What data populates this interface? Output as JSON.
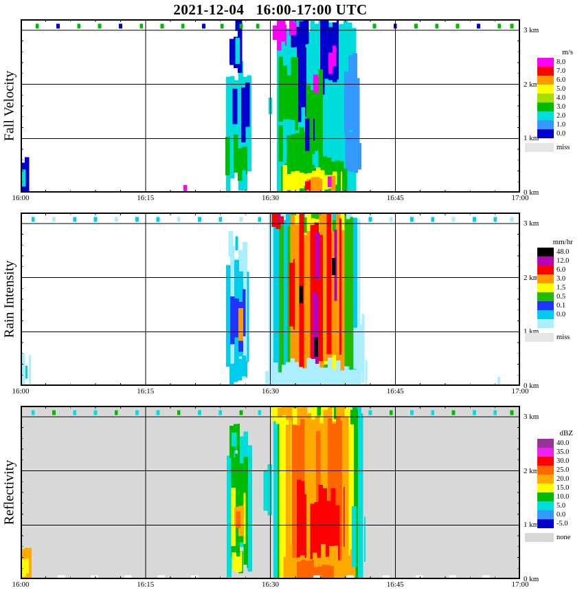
{
  "title": "2021-12-04   16:00-17:00 UTC",
  "x_axis": {
    "labels": [
      "16:00",
      "16:15",
      "16:30",
      "16:45",
      "17:00"
    ],
    "minutes": [
      0,
      15,
      30,
      45,
      60
    ]
  },
  "y_axis": {
    "labels": [
      "3 km",
      "2 km",
      "1 km",
      "0 km"
    ],
    "km": [
      3,
      2,
      1,
      0
    ],
    "range_km": [
      0,
      3.2
    ]
  },
  "chart_data": [
    {
      "type": "heatmap",
      "title": "Fall Velocity",
      "units": "m/s",
      "background": "#ffffff",
      "x_range_minutes": [
        0,
        60
      ],
      "y_range_km": [
        0,
        3.2
      ],
      "grid": {
        "x_minutes": [
          15,
          30,
          45
        ],
        "y_km": [
          1,
          2,
          3
        ]
      },
      "colorbar": {
        "title": "m/s",
        "cells": [
          {
            "label": "8.0",
            "color": "#ff00ff"
          },
          {
            "label": "7.0",
            "color": "#ff0000"
          },
          {
            "label": "6.0",
            "color": "#ff9900"
          },
          {
            "label": "5.0",
            "color": "#ffff00"
          },
          {
            "label": "4.0",
            "color": "#aadd00"
          },
          {
            "label": "3.0",
            "color": "#00bb00"
          },
          {
            "label": "2.0",
            "color": "#00dddd"
          },
          {
            "label": "1.0",
            "color": "#3399ff"
          },
          {
            "label": "0.0",
            "color": "#0000cc"
          }
        ],
        "missing": {
          "label": "miss",
          "color": "#e5e5e5"
        }
      },
      "blobs": [
        [
          0,
          1.3,
          0,
          0.6,
          8,
          0.12
        ],
        [
          0.1,
          0.9,
          0.08,
          0.38,
          6,
          0.08
        ],
        [
          19.6,
          20.0,
          0.0,
          0.14,
          0,
          0
        ],
        [
          29.3,
          30.2,
          1.3,
          1.9,
          6,
          0.15
        ],
        [
          24.2,
          27.8,
          0.25,
          2.15,
          6,
          0.28
        ],
        [
          24.6,
          27.2,
          0.35,
          0.95,
          5,
          0.15
        ],
        [
          25.5,
          27.5,
          1.05,
          1.95,
          8,
          0.22
        ],
        [
          25.1,
          26.6,
          2.3,
          2.95,
          8,
          0.15
        ],
        [
          25.3,
          26.3,
          2.45,
          2.8,
          6,
          0.1
        ],
        [
          25.8,
          26.6,
          3.0,
          3.16,
          8,
          0.04
        ],
        [
          30.3,
          40.7,
          0.0,
          3.2,
          6,
          0.3
        ],
        [
          30.3,
          31.9,
          2.7,
          3.2,
          0,
          0.12
        ],
        [
          32.0,
          34.6,
          2.7,
          3.2,
          8,
          0.15
        ],
        [
          36.0,
          38.2,
          1.9,
          3.05,
          8,
          0.22
        ],
        [
          33.2,
          34.3,
          1.5,
          2.85,
          8,
          0.22
        ],
        [
          31.0,
          33.3,
          1.2,
          2.3,
          5,
          0.25
        ],
        [
          33.8,
          36.3,
          0.7,
          2.05,
          5,
          0.25
        ],
        [
          31.0,
          35.0,
          0.4,
          1.2,
          5,
          0.2
        ],
        [
          34.2,
          35.3,
          0.85,
          1.45,
          8,
          0.15
        ],
        [
          38.4,
          40.7,
          0.9,
          2.35,
          7,
          0.25
        ],
        [
          39.0,
          40.9,
          0.25,
          1.05,
          7,
          0.2
        ],
        [
          36.5,
          37.6,
          1.3,
          1.75,
          0,
          0.08
        ],
        [
          37.0,
          37.9,
          2.25,
          2.65,
          0,
          0.08
        ],
        [
          35.2,
          35.8,
          1.85,
          2.15,
          0,
          0.05
        ],
        [
          32.3,
          33.1,
          2.9,
          3.18,
          0,
          0.05
        ],
        [
          30.8,
          39.2,
          0.0,
          0.55,
          5,
          0.12
        ],
        [
          31.5,
          38.6,
          0.05,
          0.42,
          3,
          0.1
        ],
        [
          33.4,
          36.2,
          0.0,
          0.3,
          2,
          0.08
        ],
        [
          36.8,
          38.0,
          0.0,
          0.26,
          2,
          0.06
        ],
        [
          34.2,
          34.8,
          0.03,
          0.24,
          1,
          0.05
        ],
        [
          36.9,
          37.3,
          0.1,
          0.3,
          0,
          0
        ]
      ],
      "top_marks": [
        [
          2,
          5
        ],
        [
          4.5,
          8
        ],
        [
          7,
          5
        ],
        [
          9.5,
          5
        ],
        [
          12,
          8
        ],
        [
          14.5,
          5
        ],
        [
          17,
          5
        ],
        [
          19.5,
          5
        ],
        [
          22,
          8
        ],
        [
          24.2,
          5
        ],
        [
          26.5,
          5
        ],
        [
          28.5,
          5
        ],
        [
          42.5,
          5
        ],
        [
          45,
          8
        ],
        [
          47.5,
          5
        ],
        [
          50,
          5
        ],
        [
          52.5,
          5
        ],
        [
          55,
          8
        ],
        [
          57.5,
          5
        ],
        [
          59,
          5
        ]
      ]
    },
    {
      "type": "heatmap",
      "title": "Rain Intensity",
      "units": "mm/hr",
      "background": "#ffffff",
      "x_range_minutes": [
        0,
        60
      ],
      "y_range_km": [
        0,
        3.2
      ],
      "grid": {
        "x_minutes": [
          15,
          30,
          45
        ],
        "y_km": [
          1,
          2,
          3
        ]
      },
      "colorbar": {
        "title": "mm/hr",
        "cells": [
          {
            "label": "48.0",
            "color": "#000000"
          },
          {
            "label": "12.0",
            "color": "#bb00bb"
          },
          {
            "label": "6.0",
            "color": "#ff0000"
          },
          {
            "label": "3.0",
            "color": "#ff9900"
          },
          {
            "label": "1.5",
            "color": "#ffff00"
          },
          {
            "label": "0.5",
            "color": "#22bb00"
          },
          {
            "label": "0.1",
            "color": "#2233ff"
          },
          {
            "label": "0.0",
            "color": "#00ccee"
          },
          {
            "label": "",
            "color": "#aaeeff"
          }
        ],
        "missing": {
          "label": "miss",
          "color": "#e5e5e5"
        }
      },
      "blobs": [
        [
          0,
          1.2,
          0,
          0.55,
          8,
          0.1
        ],
        [
          0.1,
          0.8,
          0.06,
          0.34,
          7,
          0.08
        ],
        [
          56.8,
          57.6,
          0.04,
          0.2,
          8,
          0.04
        ],
        [
          29.2,
          30.2,
          1.3,
          2.0,
          8,
          0.15
        ],
        [
          24.2,
          27.9,
          0.3,
          2.6,
          8,
          0.3
        ],
        [
          24.7,
          27.4,
          0.45,
          2.2,
          7,
          0.25
        ],
        [
          25.2,
          27.0,
          0.8,
          1.65,
          6,
          0.2
        ],
        [
          25.7,
          26.9,
          0.92,
          1.38,
          3,
          0.12
        ],
        [
          26.0,
          26.6,
          1.0,
          1.25,
          2,
          0.06
        ],
        [
          25.0,
          26.4,
          2.3,
          2.85,
          8,
          0.15
        ],
        [
          25.3,
          26.1,
          2.42,
          2.72,
          7,
          0.1
        ],
        [
          24.6,
          27.2,
          0.12,
          0.5,
          7,
          0.1
        ],
        [
          29.8,
          41.2,
          0.0,
          3.2,
          8,
          0.3
        ],
        [
          30.4,
          40.4,
          0.0,
          3.2,
          7,
          0.3
        ],
        [
          31.1,
          39.9,
          0.1,
          3.15,
          5,
          0.3
        ],
        [
          31.9,
          39.4,
          0.2,
          3.1,
          4,
          0.3
        ],
        [
          32.4,
          39.0,
          0.3,
          3.05,
          3,
          0.3
        ],
        [
          33.0,
          34.3,
          0.35,
          3.1,
          2,
          0.25
        ],
        [
          34.8,
          36.3,
          0.25,
          3.0,
          2,
          0.25
        ],
        [
          36.8,
          38.5,
          0.45,
          3.05,
          2,
          0.25
        ],
        [
          32.3,
          32.9,
          1.0,
          2.2,
          2,
          0.15
        ],
        [
          33.3,
          34.0,
          1.1,
          2.5,
          1,
          0.18
        ],
        [
          35.1,
          35.8,
          0.3,
          1.6,
          1,
          0.18
        ],
        [
          35.4,
          36.0,
          2.0,
          2.9,
          1,
          0.15
        ],
        [
          37.2,
          38.0,
          1.5,
          2.9,
          1,
          0.15
        ],
        [
          36.4,
          36.9,
          0.8,
          1.5,
          1,
          0.12
        ],
        [
          33.5,
          33.9,
          1.5,
          1.85,
          0,
          0.05
        ],
        [
          35.3,
          35.7,
          0.55,
          0.9,
          0,
          0.05
        ],
        [
          37.4,
          37.8,
          2.05,
          2.4,
          0,
          0.05
        ],
        [
          30.2,
          31.6,
          2.95,
          3.2,
          2,
          0.07
        ],
        [
          30.5,
          31.2,
          3.02,
          3.2,
          1,
          0.04
        ],
        [
          39.5,
          41.3,
          0.25,
          1.25,
          8,
          0.2
        ],
        [
          29.4,
          41.6,
          0.0,
          0.38,
          8,
          0.14
        ]
      ],
      "top_marks": [
        [
          1.5,
          7
        ],
        [
          4,
          8
        ],
        [
          6.5,
          7
        ],
        [
          9,
          7
        ],
        [
          11.5,
          8
        ],
        [
          14,
          7
        ],
        [
          16.5,
          7
        ],
        [
          19,
          8
        ],
        [
          21.5,
          7
        ],
        [
          24,
          7
        ],
        [
          26.5,
          8
        ],
        [
          28.7,
          7
        ],
        [
          42,
          7
        ],
        [
          44.5,
          8
        ],
        [
          47,
          7
        ],
        [
          49.5,
          7
        ],
        [
          52,
          8
        ],
        [
          54.5,
          7
        ],
        [
          57,
          7
        ],
        [
          59,
          8
        ]
      ]
    },
    {
      "type": "heatmap",
      "title": "Reflectivity",
      "units": "dBZ",
      "background": "#d8d8d8",
      "x_range_minutes": [
        0,
        60
      ],
      "y_range_km": [
        0,
        3.2
      ],
      "grid": {
        "x_minutes": [
          15,
          30,
          45
        ],
        "y_km": [
          1,
          2,
          3
        ]
      },
      "colorbar": {
        "title": "dBZ",
        "cells": [
          {
            "label": "40.0",
            "color": "#993399"
          },
          {
            "label": "35.0",
            "color": "#ee22ee"
          },
          {
            "label": "30.0",
            "color": "#ff0000"
          },
          {
            "label": "25.0",
            "color": "#ff6600"
          },
          {
            "label": "20.0",
            "color": "#ffaa00"
          },
          {
            "label": "15.0",
            "color": "#ffff00"
          },
          {
            "label": "10.0",
            "color": "#00bb00"
          },
          {
            "label": "5.0",
            "color": "#00dddd"
          },
          {
            "label": "0.0",
            "color": "#3399ff"
          },
          {
            "label": "-5.0",
            "color": "#0000cc"
          }
        ],
        "missing": {
          "label": "none",
          "color": "#d8d8d8"
        }
      },
      "blobs": [
        [
          0,
          1.3,
          0,
          0.6,
          4,
          0.12
        ],
        [
          0.15,
          0.95,
          0.1,
          0.45,
          5,
          0.08
        ],
        [
          29.2,
          30.2,
          1.3,
          2.0,
          7,
          0.15
        ],
        [
          24.3,
          27.8,
          0.3,
          2.55,
          7,
          0.3
        ],
        [
          24.8,
          27.3,
          0.45,
          2.25,
          6,
          0.25
        ],
        [
          25.3,
          27.0,
          0.65,
          1.5,
          5,
          0.2
        ],
        [
          25.7,
          26.8,
          0.9,
          1.3,
          4,
          0.12
        ],
        [
          25.9,
          26.5,
          1.0,
          1.2,
          3,
          0.06
        ],
        [
          25.1,
          26.3,
          2.3,
          2.88,
          6,
          0.14
        ],
        [
          25.35,
          25.95,
          2.42,
          2.7,
          7,
          0.08
        ],
        [
          24.7,
          27.3,
          0.12,
          0.55,
          6,
          0.12
        ],
        [
          25.4,
          26.6,
          0.2,
          0.45,
          5,
          0.08
        ],
        [
          29.9,
          41.1,
          0.0,
          3.2,
          7,
          0.3
        ],
        [
          30.4,
          40.5,
          0.0,
          3.2,
          6,
          0.3
        ],
        [
          31.1,
          40.0,
          0.0,
          3.15,
          5,
          0.3
        ],
        [
          31.9,
          39.4,
          0.0,
          3.1,
          4,
          0.3
        ],
        [
          32.6,
          34.3,
          0.15,
          3.0,
          3,
          0.28
        ],
        [
          35.0,
          36.4,
          0.1,
          2.7,
          3,
          0.28
        ],
        [
          36.9,
          38.6,
          0.25,
          2.9,
          3,
          0.25
        ],
        [
          33.8,
          38.9,
          0.0,
          1.55,
          2,
          0.3
        ],
        [
          33.2,
          34.1,
          0.35,
          1.8,
          2,
          0.18
        ],
        [
          30.2,
          33.6,
          2.92,
          3.2,
          5,
          0.09
        ],
        [
          30.9,
          32.6,
          3.0,
          3.2,
          4,
          0.06
        ],
        [
          30.6,
          40.2,
          0.0,
          0.5,
          4,
          0.15
        ],
        [
          33.2,
          37.6,
          0.0,
          0.32,
          3,
          0.1
        ],
        [
          39.8,
          41.4,
          0.2,
          1.15,
          7,
          0.2
        ],
        [
          35.2,
          36.0,
          0.0,
          0.07,
          "#ffffff",
          0
        ],
        [
          39.2,
          40.0,
          0.0,
          0.07,
          "#ffffff",
          0
        ],
        [
          4.5,
          5.3,
          0.0,
          0.07,
          "#ffffff",
          0
        ],
        [
          8.5,
          9.3,
          0.0,
          0.07,
          "#ffffff",
          0
        ],
        [
          12.5,
          13.3,
          0.0,
          0.07,
          "#ffffff",
          0
        ],
        [
          16.5,
          17.3,
          0.0,
          0.07,
          "#ffffff",
          0
        ],
        [
          20.5,
          21.3,
          0.0,
          0.07,
          "#ffffff",
          0
        ],
        [
          43.5,
          44.3,
          0.0,
          0.07,
          "#ffffff",
          0
        ],
        [
          47.5,
          48.3,
          0.0,
          0.07,
          "#ffffff",
          0
        ],
        [
          51.5,
          52.3,
          0.0,
          0.07,
          "#ffffff",
          0
        ],
        [
          55.5,
          56.3,
          0.0,
          0.07,
          "#ffffff",
          0
        ]
      ],
      "top_marks": [
        [
          1.5,
          7
        ],
        [
          4,
          6
        ],
        [
          6.5,
          7
        ],
        [
          9,
          7
        ],
        [
          11.5,
          6
        ],
        [
          14,
          7
        ],
        [
          16.5,
          7
        ],
        [
          19,
          6
        ],
        [
          21.5,
          7
        ],
        [
          24,
          7
        ],
        [
          26.5,
          6
        ],
        [
          28.7,
          7
        ],
        [
          42,
          7
        ],
        [
          44.5,
          6
        ],
        [
          47,
          7
        ],
        [
          49.5,
          7
        ],
        [
          52,
          6
        ],
        [
          54.5,
          7
        ],
        [
          57,
          7
        ],
        [
          59,
          6
        ]
      ]
    }
  ]
}
